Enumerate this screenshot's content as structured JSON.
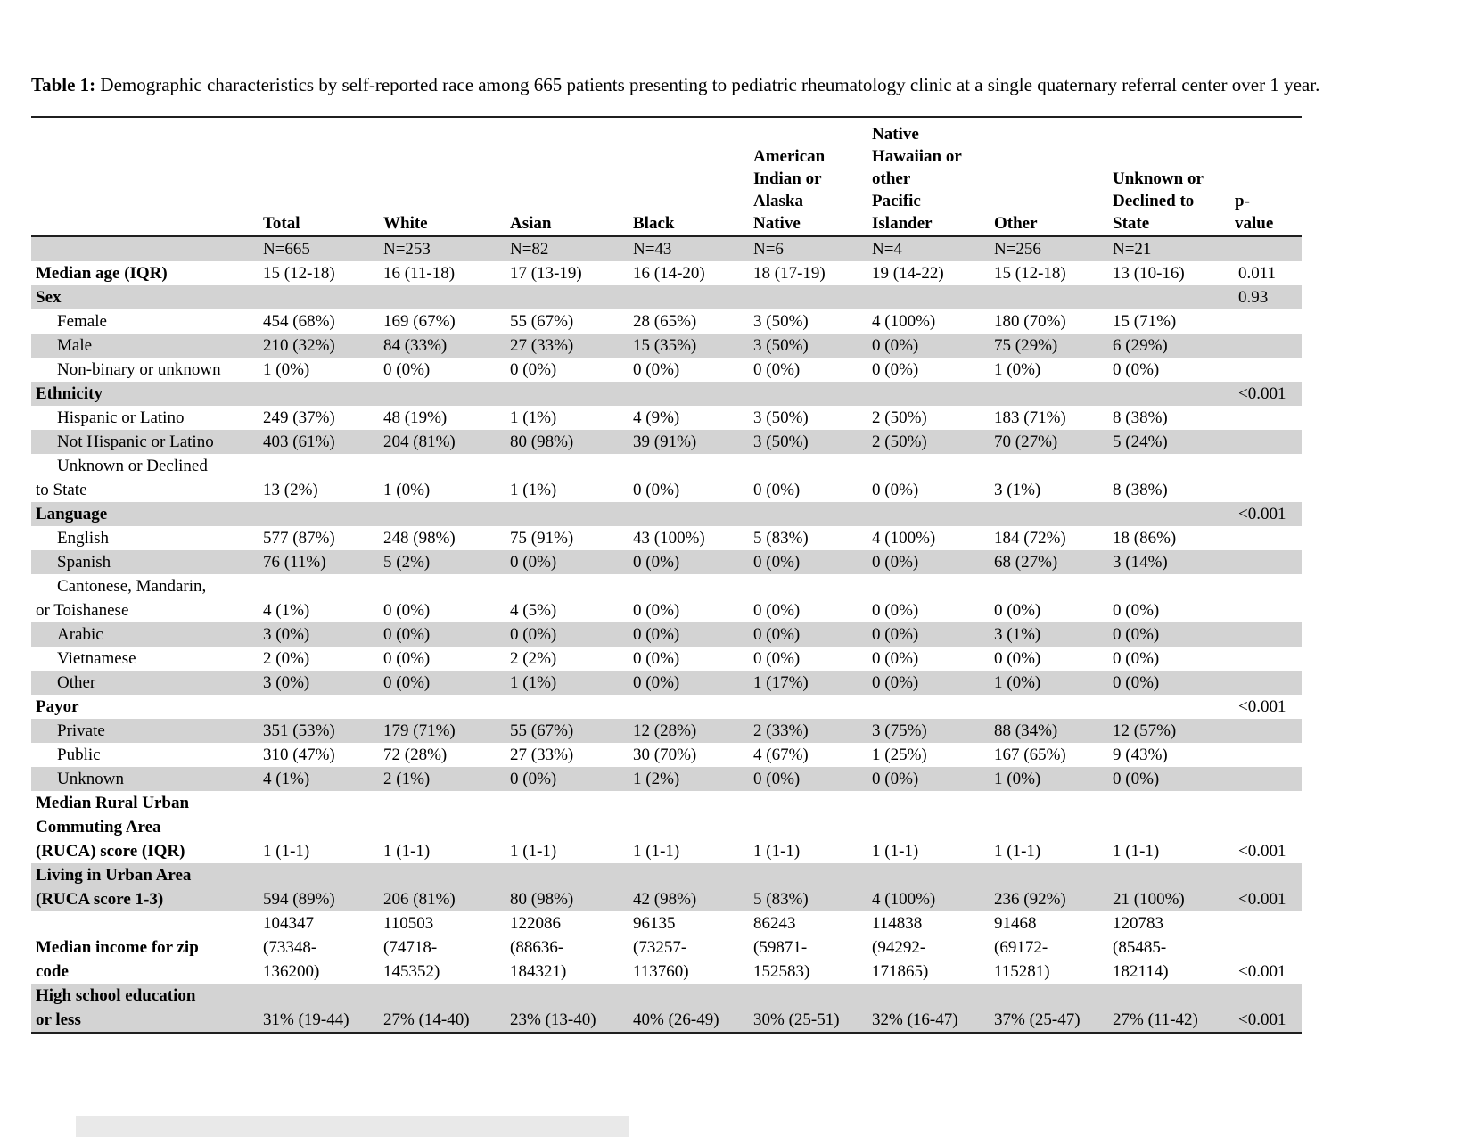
{
  "title": {
    "label": "Table 1:",
    "text": "Demographic characteristics by self-reported race among 665 patients presenting to pediatric rheumatology clinic at a single quaternary referral center over 1 year."
  },
  "colors": {
    "shaded_row": "#d3d3d3",
    "border": "#1f1f1f"
  },
  "table": {
    "columns": [
      "",
      "Total",
      "White",
      "Asian",
      "Black",
      "American\nIndian or\nAlaska\nNative",
      "Native\nHawaiian or\nother\nPacific\nIslander",
      "Other",
      "Unknown or\nDeclined to\nState",
      "p-\nvalue"
    ],
    "rows": [
      {
        "key": "n",
        "label": "",
        "bold": false,
        "indent": false,
        "shaded": true,
        "values": [
          "N=665",
          "N=253",
          "N=82",
          "N=43",
          "N=6",
          "N=4",
          "N=256",
          "N=21"
        ],
        "p": ""
      },
      {
        "key": "median-age",
        "label": "Median age (IQR)",
        "bold": true,
        "indent": false,
        "shaded": false,
        "values": [
          "15 (12-18)",
          "16 (11-18)",
          "17 (13-19)",
          "16 (14-20)",
          "18 (17-19)",
          "19 (14-22)",
          "15 (12-18)",
          "13 (10-16)"
        ],
        "p": "0.011"
      },
      {
        "key": "sex",
        "label": "Sex",
        "bold": true,
        "indent": false,
        "shaded": true,
        "values": [
          "",
          "",
          "",
          "",
          "",
          "",
          "",
          ""
        ],
        "p": "0.93"
      },
      {
        "key": "female",
        "label": "Female",
        "bold": false,
        "indent": true,
        "shaded": false,
        "values": [
          "454 (68%)",
          "169 (67%)",
          "55 (67%)",
          "28 (65%)",
          "3 (50%)",
          "4 (100%)",
          "180 (70%)",
          "15 (71%)"
        ],
        "p": ""
      },
      {
        "key": "male",
        "label": "Male",
        "bold": false,
        "indent": true,
        "shaded": true,
        "values": [
          "210 (32%)",
          "84 (33%)",
          "27 (33%)",
          "15 (35%)",
          "3 (50%)",
          "0 (0%)",
          "75 (29%)",
          "6 (29%)"
        ],
        "p": ""
      },
      {
        "key": "non-binary",
        "label": "Non-binary or unknown",
        "bold": false,
        "indent": true,
        "shaded": false,
        "values": [
          "1 (0%)",
          "0 (0%)",
          "0 (0%)",
          "0 (0%)",
          "0 (0%)",
          "0 (0%)",
          "1 (0%)",
          "0 (0%)"
        ],
        "p": ""
      },
      {
        "key": "ethnicity",
        "label": "Ethnicity",
        "bold": true,
        "indent": false,
        "shaded": true,
        "values": [
          "",
          "",
          "",
          "",
          "",
          "",
          "",
          ""
        ],
        "p": "<0.001"
      },
      {
        "key": "hispanic",
        "label": "Hispanic or Latino",
        "bold": false,
        "indent": true,
        "shaded": false,
        "values": [
          "249 (37%)",
          "48 (19%)",
          "1 (1%)",
          "4 (9%)",
          "3 (50%)",
          "2 (50%)",
          "183 (71%)",
          "8 (38%)"
        ],
        "p": ""
      },
      {
        "key": "not-hispanic",
        "label": "Not Hispanic or Latino",
        "bold": false,
        "indent": true,
        "shaded": true,
        "values": [
          "403 (61%)",
          "204 (81%)",
          "80 (98%)",
          "39 (91%)",
          "3 (50%)",
          "2 (50%)",
          "70 (27%)",
          "5 (24%)"
        ],
        "p": ""
      },
      {
        "key": "ethnicity-unknown",
        "label": "Unknown or Declined\nto State",
        "bold": false,
        "indent": true,
        "shaded": false,
        "values": [
          "13 (2%)",
          "1 (0%)",
          "1 (1%)",
          "0 (0%)",
          "0 (0%)",
          "0 (0%)",
          "3 (1%)",
          "8 (38%)"
        ],
        "p": ""
      },
      {
        "key": "language",
        "label": "Language",
        "bold": true,
        "indent": false,
        "shaded": true,
        "values": [
          "",
          "",
          "",
          "",
          "",
          "",
          "",
          ""
        ],
        "p": "<0.001"
      },
      {
        "key": "english",
        "label": "English",
        "bold": false,
        "indent": true,
        "shaded": false,
        "values": [
          "577 (87%)",
          "248 (98%)",
          "75 (91%)",
          "43 (100%)",
          "5 (83%)",
          "4 (100%)",
          "184 (72%)",
          "18 (86%)"
        ],
        "p": ""
      },
      {
        "key": "spanish",
        "label": "Spanish",
        "bold": false,
        "indent": true,
        "shaded": true,
        "values": [
          "76 (11%)",
          "5 (2%)",
          "0 (0%)",
          "0 (0%)",
          "0 (0%)",
          "0 (0%)",
          "68 (27%)",
          "3 (14%)"
        ],
        "p": ""
      },
      {
        "key": "cantonese-mandarin-toishanese",
        "label": "Cantonese, Mandarin,\nor Toishanese",
        "bold": false,
        "indent": true,
        "shaded": false,
        "values": [
          "4 (1%)",
          "0 (0%)",
          "4 (5%)",
          "0 (0%)",
          "0 (0%)",
          "0 (0%)",
          "0 (0%)",
          "0 (0%)"
        ],
        "p": ""
      },
      {
        "key": "arabic",
        "label": "Arabic",
        "bold": false,
        "indent": true,
        "shaded": true,
        "values": [
          "3 (0%)",
          "0 (0%)",
          "0 (0%)",
          "0 (0%)",
          "0 (0%)",
          "0 (0%)",
          "3 (1%)",
          "0 (0%)"
        ],
        "p": ""
      },
      {
        "key": "vietnamese",
        "label": "Vietnamese",
        "bold": false,
        "indent": true,
        "shaded": false,
        "values": [
          "2 (0%)",
          "0 (0%)",
          "2 (2%)",
          "0 (0%)",
          "0 (0%)",
          "0 (0%)",
          "0 (0%)",
          "0 (0%)"
        ],
        "p": ""
      },
      {
        "key": "language-other",
        "label": "Other",
        "bold": false,
        "indent": true,
        "shaded": true,
        "values": [
          "3 (0%)",
          "0 (0%)",
          "1 (1%)",
          "0 (0%)",
          "1 (17%)",
          "0 (0%)",
          "1 (0%)",
          "0 (0%)"
        ],
        "p": ""
      },
      {
        "key": "payor",
        "label": "Payor",
        "bold": true,
        "indent": false,
        "shaded": false,
        "values": [
          "",
          "",
          "",
          "",
          "",
          "",
          "",
          ""
        ],
        "p": "<0.001"
      },
      {
        "key": "private",
        "label": "Private",
        "bold": false,
        "indent": true,
        "shaded": true,
        "values": [
          "351 (53%)",
          "179 (71%)",
          "55 (67%)",
          "12 (28%)",
          "2 (33%)",
          "3 (75%)",
          "88 (34%)",
          "12 (57%)"
        ],
        "p": ""
      },
      {
        "key": "public",
        "label": "Public",
        "bold": false,
        "indent": true,
        "shaded": false,
        "values": [
          "310 (47%)",
          "72 (28%)",
          "27 (33%)",
          "30 (70%)",
          "4 (67%)",
          "1 (25%)",
          "167 (65%)",
          "9 (43%)"
        ],
        "p": ""
      },
      {
        "key": "payor-unknown",
        "label": "Unknown",
        "bold": false,
        "indent": true,
        "shaded": true,
        "values": [
          "4 (1%)",
          "2 (1%)",
          "0 (0%)",
          "1 (2%)",
          "0 (0%)",
          "0 (0%)",
          "1 (0%)",
          "0 (0%)"
        ],
        "p": ""
      },
      {
        "key": "ruca-score",
        "label": "Median Rural Urban\nCommuting Area\n(RUCA) score (IQR)",
        "bold": true,
        "indent": false,
        "shaded": false,
        "values": [
          "1 (1-1)",
          "1 (1-1)",
          "1 (1-1)",
          "1 (1-1)",
          "1 (1-1)",
          "1 (1-1)",
          "1 (1-1)",
          "1 (1-1)"
        ],
        "p": "<0.001"
      },
      {
        "key": "urban-area",
        "label": "Living in Urban Area\n(RUCA score 1-3)",
        "bold": true,
        "indent": false,
        "shaded": true,
        "values": [
          "594 (89%)",
          "206 (81%)",
          "80 (98%)",
          "42 (98%)",
          "5 (83%)",
          "4 (100%)",
          "236 (92%)",
          "21 (100%)"
        ],
        "p": "<0.001"
      },
      {
        "key": "median-income",
        "label": "Median income for zip\ncode",
        "bold": true,
        "indent": false,
        "shaded": false,
        "values": [
          "104347\n(73348-\n136200)",
          "110503\n(74718-\n145352)",
          "122086\n(88636-\n184321)",
          "96135\n(73257-\n113760)",
          "86243\n(59871-\n152583)",
          "114838\n(94292-\n171865)",
          "91468\n(69172-\n115281)",
          "120783\n(85485-\n182114)"
        ],
        "p": "<0.001"
      },
      {
        "key": "hs-education",
        "label": "High school education\nor less",
        "bold": true,
        "indent": false,
        "shaded": true,
        "values": [
          "31% (19-44)",
          "27% (14-40)",
          "23% (13-40)",
          "40% (26-49)",
          "30% (25-51)",
          "32% (16-47)",
          "37% (25-47)",
          "27% (11-42)"
        ],
        "p": "<0.001"
      }
    ]
  }
}
